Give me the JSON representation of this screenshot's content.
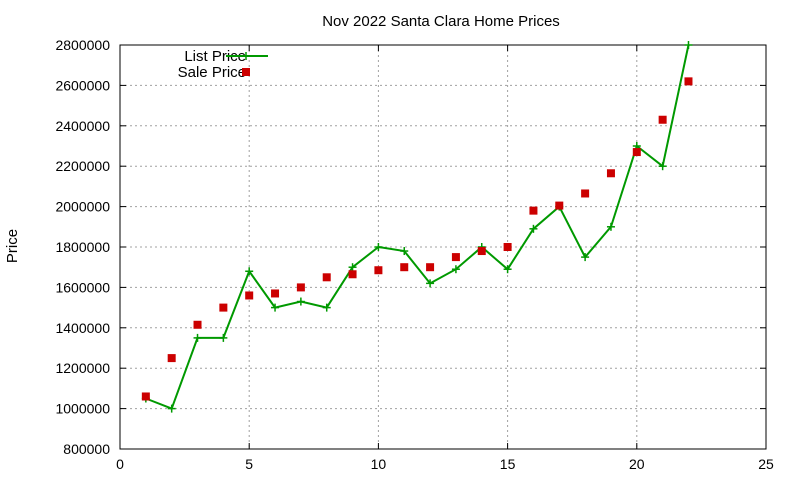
{
  "chart_data": {
    "type": "line",
    "title": "Nov 2022 Santa Clara Home Prices",
    "xlabel": "",
    "ylabel": "Price",
    "xlim": [
      0,
      25
    ],
    "ylim": [
      800000,
      2800000
    ],
    "xticks": [
      0,
      5,
      10,
      15,
      20,
      25
    ],
    "yticks": [
      800000,
      1000000,
      1200000,
      1400000,
      1600000,
      1800000,
      2000000,
      2200000,
      2400000,
      2600000,
      2800000
    ],
    "grid": true,
    "legend_position": "top-left",
    "series": [
      {
        "name": "List Price",
        "style": "line+cross",
        "color": "#009900",
        "x": [
          1,
          2,
          3,
          4,
          5,
          6,
          7,
          8,
          9,
          10,
          11,
          12,
          13,
          14,
          15,
          16,
          17,
          18,
          19,
          20,
          21,
          22
        ],
        "y": [
          1050000,
          1000000,
          1350000,
          1350000,
          1680000,
          1500000,
          1530000,
          1500000,
          1700000,
          1800000,
          1780000,
          1620000,
          1690000,
          1800000,
          1690000,
          1890000,
          2000000,
          1750000,
          1900000,
          2300000,
          2200000,
          2800000
        ]
      },
      {
        "name": "Sale Price",
        "style": "square",
        "color": "#cc0000",
        "x": [
          1,
          2,
          3,
          4,
          5,
          6,
          7,
          8,
          9,
          10,
          11,
          12,
          13,
          14,
          15,
          16,
          17,
          18,
          19,
          20,
          21,
          22
        ],
        "y": [
          1060000,
          1250000,
          1415000,
          1500000,
          1560000,
          1570000,
          1600000,
          1650000,
          1665000,
          1685000,
          1700000,
          1700000,
          1750000,
          1780000,
          1800000,
          1980000,
          2005000,
          2065000,
          2165000,
          2270000,
          2430000,
          2620000
        ]
      }
    ]
  }
}
